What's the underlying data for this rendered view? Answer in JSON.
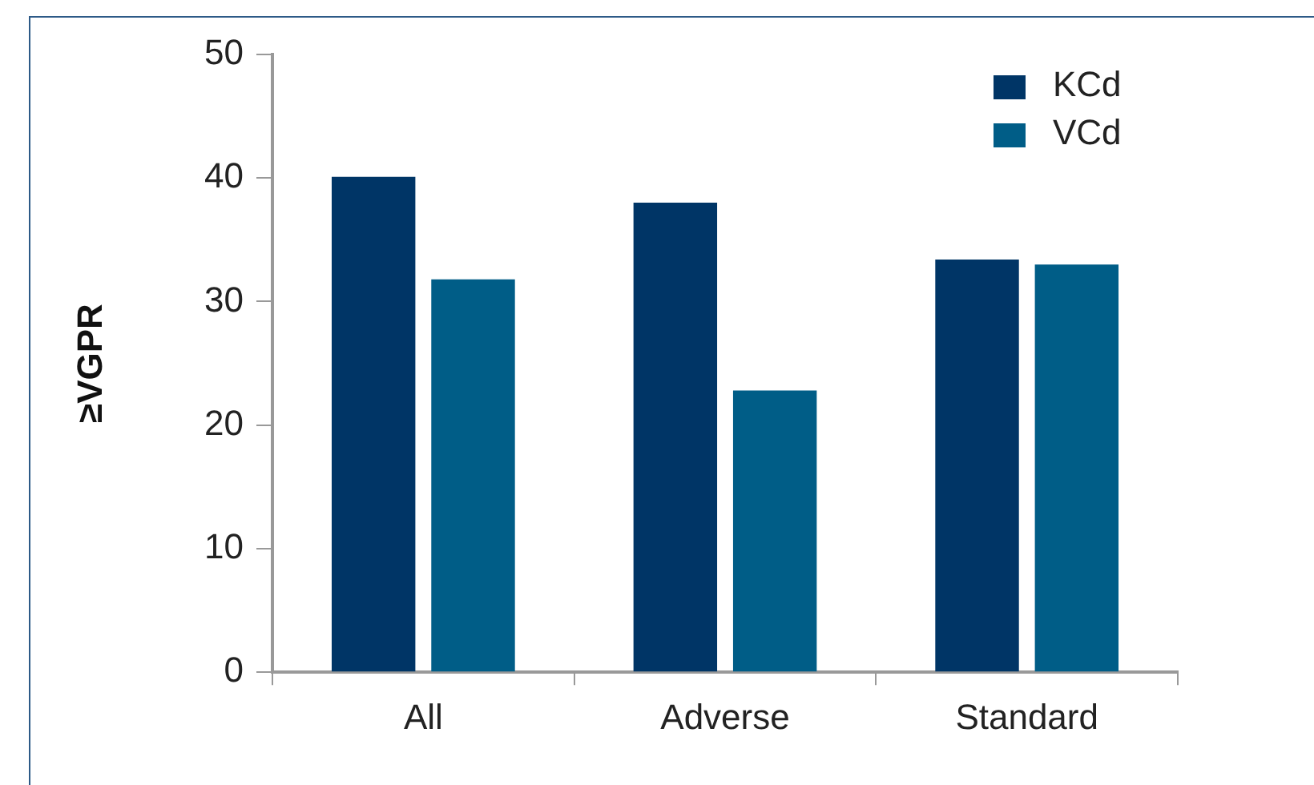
{
  "chart_data": {
    "type": "bar",
    "ylabel": "≥VGPR",
    "categories": [
      "All",
      "Adverse",
      "Standard"
    ],
    "series": [
      {
        "name": "KCd",
        "color": "#003566",
        "values": [
          40.1,
          38.0,
          33.4
        ]
      },
      {
        "name": "VCd",
        "color": "#005d87",
        "values": [
          31.8,
          22.8,
          33.0
        ]
      }
    ],
    "ylim": [
      0,
      50
    ],
    "yticks": [
      0,
      10,
      20,
      30,
      40,
      50
    ],
    "grid": false,
    "legend": "top right"
  }
}
